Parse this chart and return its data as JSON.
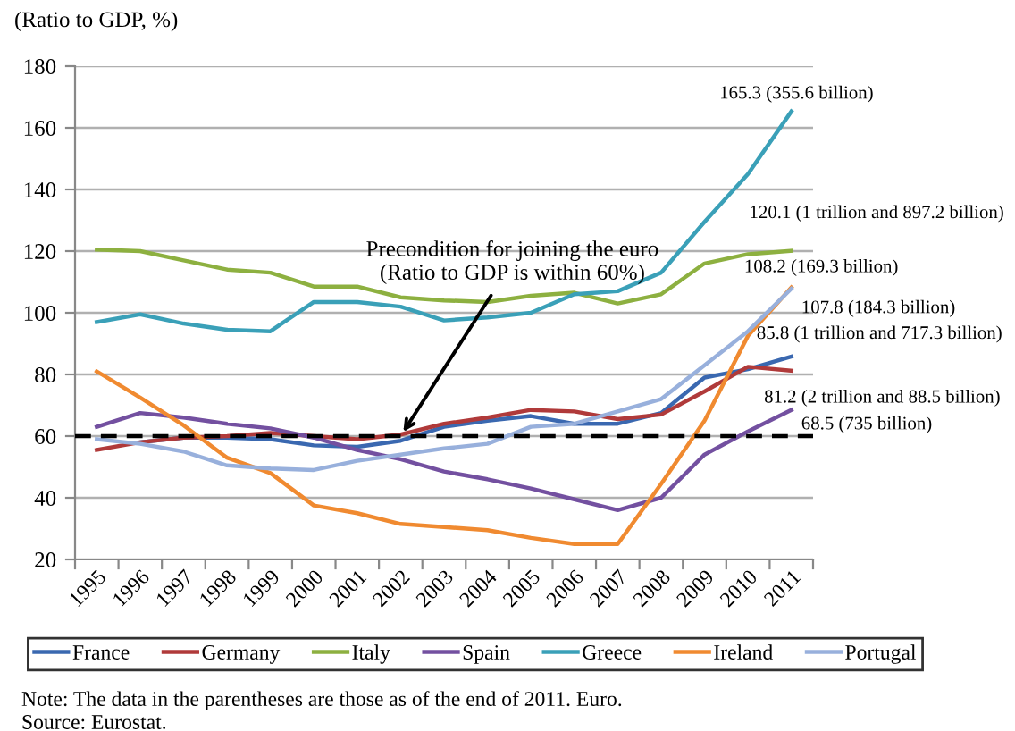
{
  "chart_data": {
    "type": "line",
    "ylabel": "(Ratio to GDP, %)",
    "categories": [
      "1995",
      "1996",
      "1997",
      "1998",
      "1999",
      "2000",
      "2001",
      "2002",
      "2003",
      "2004",
      "2005",
      "2006",
      "2007",
      "2008",
      "2009",
      "2010",
      "2011"
    ],
    "series": [
      {
        "name": "France",
        "color": "#3a68b0",
        "values": [
          null,
          58,
          59.5,
          59.5,
          59,
          57,
          56.5,
          58.5,
          63,
          65,
          66.5,
          64,
          64,
          67.5,
          79,
          81.7,
          85.8
        ]
      },
      {
        "name": "Germany",
        "color": "#b03a3a",
        "values": [
          55.5,
          58,
          59.5,
          60,
          61,
          60,
          59,
          60.5,
          64,
          66,
          68.5,
          68,
          65.5,
          67,
          74.5,
          82.5,
          81.2
        ]
      },
      {
        "name": "Italy",
        "color": "#8db040",
        "values": [
          120.5,
          120,
          117,
          114,
          113,
          108.5,
          108.5,
          105,
          104,
          103.5,
          105.5,
          106.5,
          103,
          106,
          116,
          119,
          120.1
        ]
      },
      {
        "name": "Spain",
        "color": "#7350a0",
        "values": [
          63,
          67.5,
          66,
          64,
          62.5,
          59.5,
          55.5,
          52.5,
          48.5,
          46,
          43,
          39.5,
          36,
          40,
          54,
          61.5,
          68.5
        ]
      },
      {
        "name": "Greece",
        "color": "#3aa0b8",
        "values": [
          97,
          99.5,
          96.5,
          94.5,
          94,
          103.5,
          103.5,
          102,
          97.5,
          98.5,
          100,
          106,
          107,
          113,
          129.5,
          145,
          165.3
        ]
      },
      {
        "name": "Ireland",
        "color": "#f08a30",
        "values": [
          81,
          72.5,
          63.5,
          53,
          48,
          37.5,
          35,
          31.5,
          30.5,
          29.5,
          27,
          25,
          25,
          44.5,
          65,
          92.5,
          108.2
        ]
      },
      {
        "name": "Portugal",
        "color": "#98b0dc",
        "values": [
          59,
          57.5,
          55,
          50.5,
          49.5,
          49,
          52,
          54,
          56,
          57.5,
          63,
          64,
          68,
          72,
          83,
          94,
          107.8
        ]
      }
    ],
    "ylim": [
      20,
      180
    ],
    "yticks": [
      20,
      40,
      60,
      80,
      100,
      120,
      140,
      160,
      180
    ],
    "grid": "y",
    "legend": "bottom",
    "ref_lines": [
      {
        "axis": "y",
        "value": 60,
        "color": "#000000",
        "line_style": "dashed"
      }
    ],
    "annotations": [
      {
        "text": "Precondition for joining the euro\n(Ratio to GDP is within 60%)",
        "x": "2002",
        "y": 60
      },
      {
        "text": "165.3 (355.6 billion)",
        "x": "2011",
        "y": 165.3
      },
      {
        "text": "120.1 (1 trillion and 897.2 billion)",
        "x": "2011",
        "y": 120.1
      },
      {
        "text": "108.2 (169.3 billion)",
        "x": "2011",
        "y": 108.2
      },
      {
        "text": "107.8 (184.3 billion)",
        "x": "2011",
        "y": 107.8
      },
      {
        "text": "85.8 (1 trillion and 717.3 billion)",
        "x": "2011",
        "y": 85.8
      },
      {
        "text": "81.2 (2 trillion and 88.5 billion)",
        "x": "2011",
        "y": 81.2
      },
      {
        "text": "68.5 (735 billion)",
        "x": "2011",
        "y": 68.5
      },
      "Note: The data in the parentheses are those as of the end of 2011. Euro.",
      "Source: Eurostat."
    ]
  }
}
